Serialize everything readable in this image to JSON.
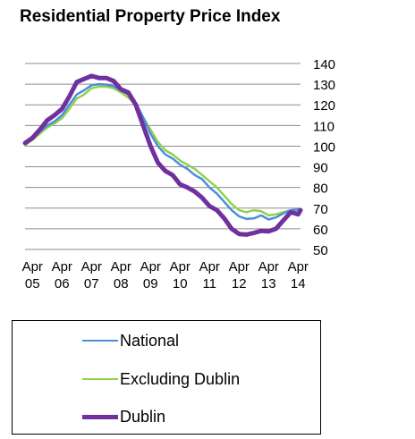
{
  "chart_data": {
    "type": "line",
    "title": "Residential Property Price Index",
    "xlabel": "",
    "ylabel": "",
    "ylim": [
      50,
      140
    ],
    "yticks": [
      50,
      60,
      70,
      80,
      90,
      100,
      110,
      120,
      130,
      140
    ],
    "x_tick_labels": [
      [
        "Apr",
        "05"
      ],
      [
        "Apr",
        "06"
      ],
      [
        "Apr",
        "07"
      ],
      [
        "Apr",
        "08"
      ],
      [
        "Apr",
        "09"
      ],
      [
        "Apr",
        "10"
      ],
      [
        "Apr",
        "11"
      ],
      [
        "Apr",
        "12"
      ],
      [
        "Apr",
        "13"
      ],
      [
        "Apr",
        "14"
      ]
    ],
    "x_start": "2005-01",
    "x_end": "2014-05",
    "grid": true,
    "legend_position": "bottom",
    "series": [
      {
        "name": "National",
        "color": "#4a90d9",
        "points": [
          [
            "2005-01",
            101
          ],
          [
            "2005-04",
            103.5
          ],
          [
            "2005-07",
            107
          ],
          [
            "2005-10",
            110
          ],
          [
            "2006-01",
            112
          ],
          [
            "2006-04",
            115
          ],
          [
            "2006-07",
            120
          ],
          [
            "2006-10",
            125
          ],
          [
            "2007-01",
            127
          ],
          [
            "2007-04",
            129.5
          ],
          [
            "2007-07",
            130
          ],
          [
            "2007-10",
            129.8
          ],
          [
            "2008-01",
            129
          ],
          [
            "2008-04",
            127
          ],
          [
            "2008-07",
            125
          ],
          [
            "2008-10",
            121
          ],
          [
            "2009-01",
            114
          ],
          [
            "2009-04",
            106
          ],
          [
            "2009-07",
            100
          ],
          [
            "2009-10",
            96
          ],
          [
            "2010-01",
            94
          ],
          [
            "2010-04",
            91
          ],
          [
            "2010-07",
            89
          ],
          [
            "2010-10",
            86
          ],
          [
            "2011-01",
            84
          ],
          [
            "2011-04",
            80
          ],
          [
            "2011-07",
            77
          ],
          [
            "2011-10",
            73
          ],
          [
            "2012-01",
            69
          ],
          [
            "2012-04",
            66
          ],
          [
            "2012-07",
            64.8
          ],
          [
            "2012-10",
            65
          ],
          [
            "2013-01",
            66.5
          ],
          [
            "2013-04",
            64.5
          ],
          [
            "2013-07",
            65.5
          ],
          [
            "2013-10",
            67.5
          ],
          [
            "2014-01",
            69
          ],
          [
            "2014-05",
            69.5
          ]
        ]
      },
      {
        "name": "Excluding Dublin",
        "color": "#92d050",
        "points": [
          [
            "2005-01",
            100.5
          ],
          [
            "2005-04",
            103
          ],
          [
            "2005-07",
            106
          ],
          [
            "2005-10",
            109
          ],
          [
            "2006-01",
            111
          ],
          [
            "2006-04",
            113.5
          ],
          [
            "2006-07",
            118
          ],
          [
            "2006-10",
            123
          ],
          [
            "2007-01",
            125
          ],
          [
            "2007-04",
            128
          ],
          [
            "2007-07",
            128.8
          ],
          [
            "2007-10",
            128.8
          ],
          [
            "2008-01",
            128
          ],
          [
            "2008-04",
            126
          ],
          [
            "2008-07",
            123.5
          ],
          [
            "2008-10",
            120
          ],
          [
            "2009-01",
            114
          ],
          [
            "2009-04",
            108
          ],
          [
            "2009-07",
            102
          ],
          [
            "2009-10",
            98
          ],
          [
            "2010-01",
            96
          ],
          [
            "2010-04",
            93
          ],
          [
            "2010-07",
            91
          ],
          [
            "2010-10",
            89
          ],
          [
            "2011-01",
            86
          ],
          [
            "2011-04",
            83
          ],
          [
            "2011-07",
            80
          ],
          [
            "2011-10",
            76
          ],
          [
            "2012-01",
            72
          ],
          [
            "2012-04",
            69
          ],
          [
            "2012-07",
            68
          ],
          [
            "2012-10",
            69
          ],
          [
            "2013-01",
            68.5
          ],
          [
            "2013-04",
            66.5
          ],
          [
            "2013-07",
            67
          ],
          [
            "2013-10",
            68
          ],
          [
            "2014-01",
            69
          ],
          [
            "2014-05",
            69
          ]
        ]
      },
      {
        "name": "Dublin",
        "color": "#7030a0",
        "points": [
          [
            "2005-01",
            101.5
          ],
          [
            "2005-04",
            104
          ],
          [
            "2005-07",
            108
          ],
          [
            "2005-10",
            112.5
          ],
          [
            "2006-01",
            115
          ],
          [
            "2006-04",
            118
          ],
          [
            "2006-07",
            124
          ],
          [
            "2006-10",
            131
          ],
          [
            "2007-01",
            132.5
          ],
          [
            "2007-04",
            134
          ],
          [
            "2007-07",
            133
          ],
          [
            "2007-10",
            133
          ],
          [
            "2008-01",
            131.5
          ],
          [
            "2008-04",
            127.5
          ],
          [
            "2008-07",
            126
          ],
          [
            "2008-10",
            120
          ],
          [
            "2009-01",
            110
          ],
          [
            "2009-04",
            100
          ],
          [
            "2009-07",
            92
          ],
          [
            "2009-10",
            88
          ],
          [
            "2010-01",
            86
          ],
          [
            "2010-04",
            81.5
          ],
          [
            "2010-07",
            80
          ],
          [
            "2010-10",
            78
          ],
          [
            "2011-01",
            75
          ],
          [
            "2011-04",
            71
          ],
          [
            "2011-07",
            69
          ],
          [
            "2011-10",
            65
          ],
          [
            "2012-01",
            60
          ],
          [
            "2012-04",
            57.5
          ],
          [
            "2012-07",
            57.2
          ],
          [
            "2012-10",
            58
          ],
          [
            "2013-01",
            59
          ],
          [
            "2013-04",
            58.8
          ],
          [
            "2013-07",
            60
          ],
          [
            "2013-10",
            64
          ],
          [
            "2014-01",
            68
          ],
          [
            "2014-04",
            67
          ],
          [
            "2014-05",
            69
          ]
        ]
      }
    ]
  }
}
